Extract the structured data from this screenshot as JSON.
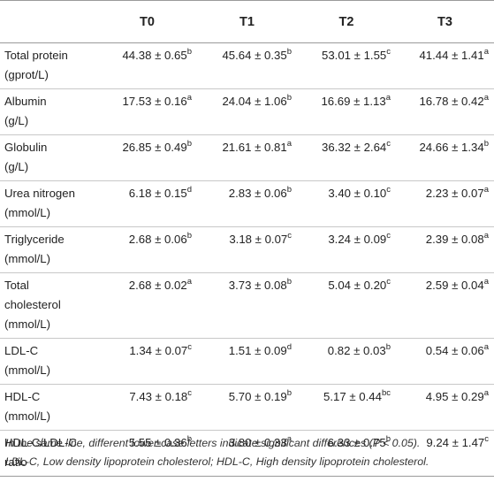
{
  "table": {
    "headers": [
      "",
      "T0",
      "T1",
      "T2",
      "T3"
    ],
    "rows": [
      {
        "label": [
          "Total protein",
          "(gprot/L)"
        ],
        "cells": [
          [
            "44.38 ± 0.65",
            "b"
          ],
          [
            "45.64 ± 0.35",
            "b"
          ],
          [
            "53.01 ± 1.55",
            "c"
          ],
          [
            "41.44 ± 1.41",
            "a"
          ]
        ]
      },
      {
        "label": [
          "Albumin",
          "(g/L)"
        ],
        "cells": [
          [
            "17.53 ± 0.16",
            "a"
          ],
          [
            "24.04 ± 1.06",
            "b"
          ],
          [
            "16.69 ± 1.13",
            "a"
          ],
          [
            "16.78 ± 0.42",
            "a"
          ]
        ]
      },
      {
        "label": [
          "Globulin",
          "(g/L)"
        ],
        "cells": [
          [
            "26.85 ± 0.49",
            "b"
          ],
          [
            "21.61 ± 0.81",
            "a"
          ],
          [
            "36.32 ± 2.64",
            "c"
          ],
          [
            "24.66 ± 1.34",
            "b"
          ]
        ]
      },
      {
        "label": [
          "Urea nitrogen",
          "(mmol/L)"
        ],
        "cells": [
          [
            "6.18 ± 0.15",
            "d"
          ],
          [
            "2.83 ± 0.06",
            "b"
          ],
          [
            "3.40 ± 0.10",
            "c"
          ],
          [
            "2.23 ± 0.07",
            "a"
          ]
        ]
      },
      {
        "label": [
          "Triglyceride",
          "(mmol/L)"
        ],
        "cells": [
          [
            "2.68 ± 0.06",
            "b"
          ],
          [
            "3.18 ± 0.07",
            "c"
          ],
          [
            "3.24 ± 0.09",
            "c"
          ],
          [
            "2.39 ± 0.08",
            "a"
          ]
        ]
      },
      {
        "label": [
          "Total",
          "cholesterol",
          "(mmol/L)"
        ],
        "cells": [
          [
            "2.68 ± 0.02",
            "a"
          ],
          [
            "3.73 ± 0.08",
            "b"
          ],
          [
            "5.04 ± 0.20",
            "c"
          ],
          [
            "2.59 ± 0.04",
            "a"
          ]
        ]
      },
      {
        "label": [
          "LDL-C",
          "(mmol/L)"
        ],
        "cells": [
          [
            "1.34 ± 0.07",
            "c"
          ],
          [
            "1.51 ± 0.09",
            "d"
          ],
          [
            "0.82 ± 0.03",
            "b"
          ],
          [
            "0.54 ± 0.06",
            "a"
          ]
        ]
      },
      {
        "label": [
          "HDL-C",
          "(mmol/L)"
        ],
        "cells": [
          [
            "7.43 ± 0.18",
            "c"
          ],
          [
            "5.70 ± 0.19",
            "b"
          ],
          [
            "5.17 ± 0.44",
            "bc"
          ],
          [
            "4.95 ± 0.29",
            "a"
          ]
        ]
      },
      {
        "label": [
          "HDL-C/LDL-C",
          "ratio"
        ],
        "cells": [
          [
            "5.55 ± 0.36",
            "b"
          ],
          [
            "3.80 ± 0.33",
            "a"
          ],
          [
            "6.33 ± 0.75",
            "b"
          ],
          [
            "9.24 ± 1.47",
            "c"
          ]
        ]
      }
    ]
  },
  "footnote": {
    "line1": "In the same line, different lower-case letters indicate significant differences (P < 0.05).",
    "line2": "LDL-C, Low density lipoprotein cholesterol; HDL-C, High density lipoprotein cholesterol."
  }
}
